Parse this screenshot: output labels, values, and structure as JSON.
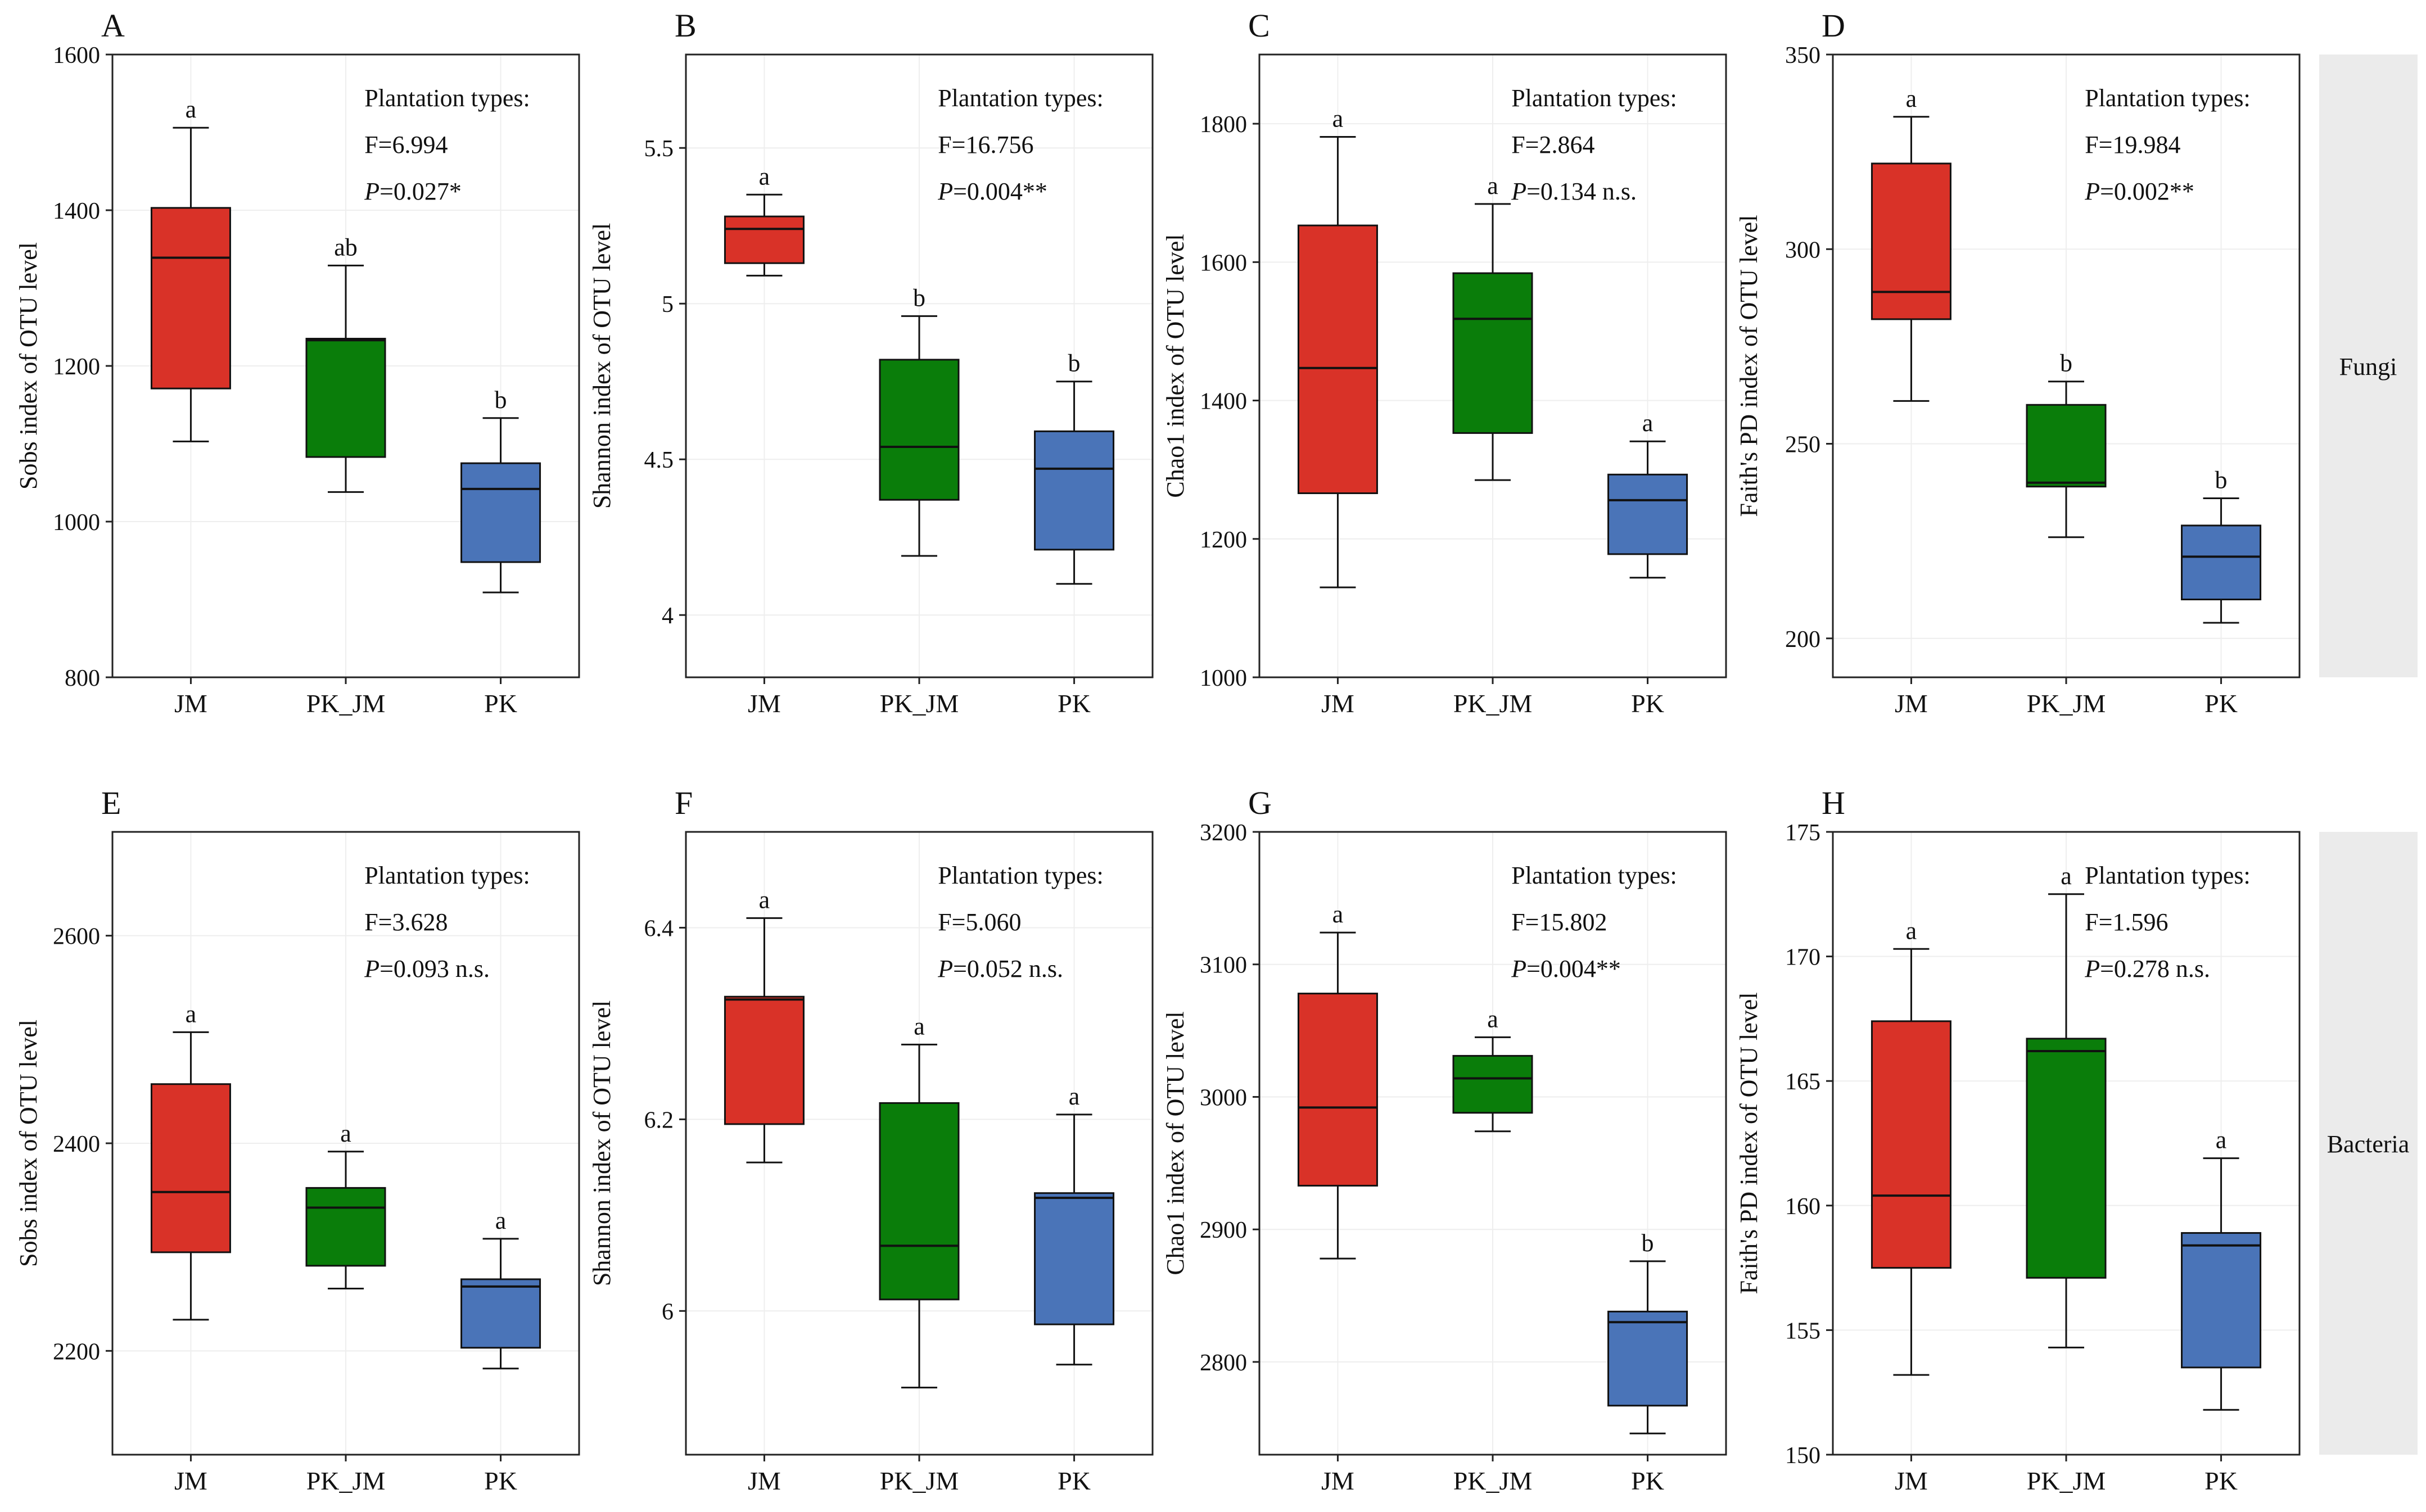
{
  "figure": {
    "groups": [
      "JM",
      "PK_JM",
      "PK"
    ],
    "colors": {
      "JM": "#d93228",
      "PK_JM": "#0a7d0a",
      "PK": "#4a74b8"
    },
    "strip_labels": [
      "Fungi",
      "Bacteria"
    ],
    "stats_heading": "Plantation types:",
    "p_symbol": "P"
  },
  "chart_data": [
    {
      "type": "box",
      "panel": "A",
      "ylabel": "Sobs index of OTU level",
      "ylim": [
        800,
        1600
      ],
      "yticks": [
        800,
        1000,
        1200,
        1400,
        1600
      ],
      "stats": {
        "f": "F=6.994",
        "p": "=0.027*"
      },
      "boxes": [
        {
          "group": "JM",
          "whisker_low": 1103,
          "q1": 1171,
          "median": 1339,
          "q3": 1403,
          "whisker_high": 1506,
          "letter": "a"
        },
        {
          "group": "PK_JM",
          "whisker_low": 1038,
          "q1": 1083,
          "median": 1233,
          "q3": 1235,
          "whisker_high": 1329,
          "letter": "ab"
        },
        {
          "group": "PK",
          "whisker_low": 909,
          "q1": 948,
          "median": 1042,
          "q3": 1075,
          "whisker_high": 1133,
          "letter": "b"
        }
      ]
    },
    {
      "type": "box",
      "panel": "B",
      "ylabel": "Shannon index of OTU level",
      "ylim": [
        3.8,
        5.8
      ],
      "yticks": [
        4.0,
        4.5,
        5.0,
        5.5
      ],
      "stats": {
        "f": "F=16.756",
        "p": "=0.004**"
      },
      "boxes": [
        {
          "group": "JM",
          "whisker_low": 5.09,
          "q1": 5.13,
          "median": 5.24,
          "q3": 5.28,
          "whisker_high": 5.35,
          "letter": "a"
        },
        {
          "group": "PK_JM",
          "whisker_low": 4.19,
          "q1": 4.37,
          "median": 4.54,
          "q3": 4.82,
          "whisker_high": 4.96,
          "letter": "b"
        },
        {
          "group": "PK",
          "whisker_low": 4.1,
          "q1": 4.21,
          "median": 4.47,
          "q3": 4.59,
          "whisker_high": 4.75,
          "letter": "b"
        }
      ]
    },
    {
      "type": "box",
      "panel": "C",
      "ylabel": "Chao1 index of OTU level",
      "ylim": [
        1000,
        1900
      ],
      "yticks": [
        1000,
        1200,
        1400,
        1600,
        1800
      ],
      "stats": {
        "f": "F=2.864",
        "p": "=0.134 n.s."
      },
      "boxes": [
        {
          "group": "JM",
          "whisker_low": 1130,
          "q1": 1266,
          "median": 1447,
          "q3": 1653,
          "whisker_high": 1781,
          "letter": "a"
        },
        {
          "group": "PK_JM",
          "whisker_low": 1285,
          "q1": 1353,
          "median": 1518,
          "q3": 1584,
          "whisker_high": 1684,
          "letter": "a"
        },
        {
          "group": "PK",
          "whisker_low": 1144,
          "q1": 1178,
          "median": 1256,
          "q3": 1293,
          "whisker_high": 1341,
          "letter": "a"
        }
      ]
    },
    {
      "type": "box",
      "panel": "D",
      "ylabel": "Faith's PD index of OTU level",
      "ylim": [
        190,
        350
      ],
      "yticks": [
        200,
        250,
        300,
        350
      ],
      "stats": {
        "f": "F=19.984",
        "p": "=0.002**"
      },
      "boxes": [
        {
          "group": "JM",
          "whisker_low": 261,
          "q1": 282,
          "median": 289,
          "q3": 322,
          "whisker_high": 334,
          "letter": "a"
        },
        {
          "group": "PK_JM",
          "whisker_low": 226,
          "q1": 239,
          "median": 240,
          "q3": 260,
          "whisker_high": 266,
          "letter": "b"
        },
        {
          "group": "PK",
          "whisker_low": 204,
          "q1": 210,
          "median": 221,
          "q3": 229,
          "whisker_high": 236,
          "letter": "b"
        }
      ]
    },
    {
      "type": "box",
      "panel": "E",
      "ylabel": "Sobs index of OTU level",
      "ylim": [
        2100,
        2700
      ],
      "yticks": [
        2200,
        2400,
        2600
      ],
      "stats": {
        "f": "F=3.628",
        "p": "=0.093 n.s."
      },
      "boxes": [
        {
          "group": "JM",
          "whisker_low": 2230,
          "q1": 2295,
          "median": 2353,
          "q3": 2457,
          "whisker_high": 2507,
          "letter": "a"
        },
        {
          "group": "PK_JM",
          "whisker_low": 2260,
          "q1": 2282,
          "median": 2338,
          "q3": 2357,
          "whisker_high": 2392,
          "letter": "a"
        },
        {
          "group": "PK",
          "whisker_low": 2183,
          "q1": 2203,
          "median": 2262,
          "q3": 2269,
          "whisker_high": 2308,
          "letter": "a"
        }
      ]
    },
    {
      "type": "box",
      "panel": "F",
      "ylabel": "Shannon index of OTU level",
      "ylim": [
        5.85,
        6.5
      ],
      "yticks": [
        6.0,
        6.2,
        6.4
      ],
      "stats": {
        "f": "F=5.060",
        "p": "=0.052 n.s."
      },
      "boxes": [
        {
          "group": "JM",
          "whisker_low": 6.155,
          "q1": 6.195,
          "median": 6.325,
          "q3": 6.328,
          "whisker_high": 6.41,
          "letter": "a"
        },
        {
          "group": "PK_JM",
          "whisker_low": 5.92,
          "q1": 6.012,
          "median": 6.068,
          "q3": 6.217,
          "whisker_high": 6.278,
          "letter": "a"
        },
        {
          "group": "PK",
          "whisker_low": 5.944,
          "q1": 5.986,
          "median": 6.118,
          "q3": 6.123,
          "whisker_high": 6.205,
          "letter": "a"
        }
      ]
    },
    {
      "type": "box",
      "panel": "G",
      "ylabel": "Chao1 index of OTU level",
      "ylim": [
        2730,
        3200
      ],
      "yticks": [
        2800,
        2900,
        3000,
        3100,
        3200
      ],
      "stats": {
        "f": "F=15.802",
        "p": "=0.004**"
      },
      "boxes": [
        {
          "group": "JM",
          "whisker_low": 2878,
          "q1": 2933,
          "median": 2992,
          "q3": 3078,
          "whisker_high": 3124,
          "letter": "a"
        },
        {
          "group": "PK_JM",
          "whisker_low": 2974,
          "q1": 2988,
          "median": 3014,
          "q3": 3031,
          "whisker_high": 3045,
          "letter": "a"
        },
        {
          "group": "PK",
          "whisker_low": 2746,
          "q1": 2767,
          "median": 2830,
          "q3": 2838,
          "whisker_high": 2876,
          "letter": "b"
        }
      ]
    },
    {
      "type": "box",
      "panel": "H",
      "ylabel": "Faith's PD index of OTU level",
      "ylim": [
        150,
        175
      ],
      "yticks": [
        150,
        155,
        160,
        165,
        170,
        175
      ],
      "stats": {
        "f": "F=1.596",
        "p": "=0.278 n.s."
      },
      "boxes": [
        {
          "group": "JM",
          "whisker_low": 153.2,
          "q1": 157.5,
          "median": 160.4,
          "q3": 167.4,
          "whisker_high": 170.3,
          "letter": "a"
        },
        {
          "group": "PK_JM",
          "whisker_low": 154.3,
          "q1": 157.1,
          "median": 166.2,
          "q3": 166.7,
          "whisker_high": 172.5,
          "letter": "a"
        },
        {
          "group": "PK",
          "whisker_low": 151.8,
          "q1": 153.5,
          "median": 158.4,
          "q3": 158.9,
          "whisker_high": 161.9,
          "letter": "a"
        }
      ]
    }
  ]
}
